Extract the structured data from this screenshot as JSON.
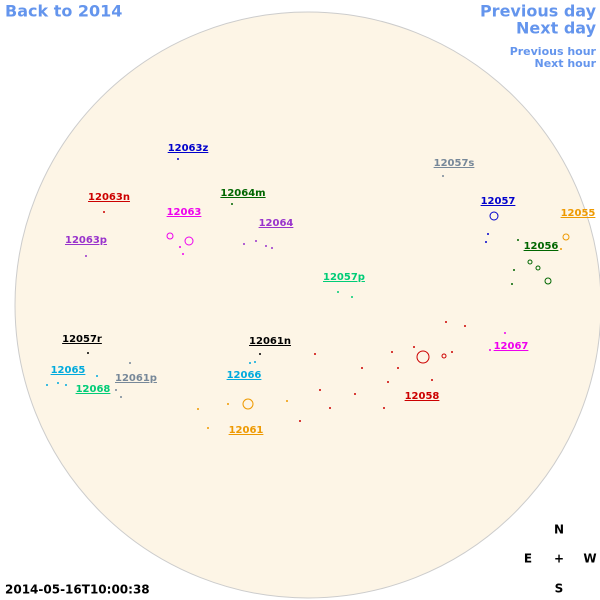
{
  "nav": {
    "back": "Back to 2014",
    "prev_day": "Previous day",
    "next_day": "Next day",
    "prev_hour": "Previous hour",
    "next_hour": "Next hour"
  },
  "timestamp": "2014-05-16T10:00:38",
  "compass": {
    "north": "N",
    "east": "E",
    "center": "+",
    "west": "W",
    "south": "S"
  },
  "regions": [
    {
      "label": "12063z",
      "color": "#0000cc"
    },
    {
      "label": "12063n",
      "color": "#cc0000"
    },
    {
      "label": "12064m",
      "color": "#006600"
    },
    {
      "label": "12063",
      "color": "#ee00ee"
    },
    {
      "label": "12064",
      "color": "#9933cc"
    },
    {
      "label": "12063p",
      "color": "#9933cc"
    },
    {
      "label": "12057s",
      "color": "#778899"
    },
    {
      "label": "12057",
      "color": "#0000cc"
    },
    {
      "label": "12055",
      "color": "#ee9900"
    },
    {
      "label": "12056",
      "color": "#006600"
    },
    {
      "label": "12057p",
      "color": "#00cc77"
    },
    {
      "label": "12057r",
      "color": "#000000"
    },
    {
      "label": "12061n",
      "color": "#000000"
    },
    {
      "label": "12067",
      "color": "#ee00ee"
    },
    {
      "label": "12065",
      "color": "#00aadd"
    },
    {
      "label": "12061p",
      "color": "#778899"
    },
    {
      "label": "12066",
      "color": "#00aadd"
    },
    {
      "label": "12068",
      "color": "#00cc77"
    },
    {
      "label": "12058",
      "color": "#cc0000"
    },
    {
      "label": "12061",
      "color": "#ee9900"
    }
  ]
}
